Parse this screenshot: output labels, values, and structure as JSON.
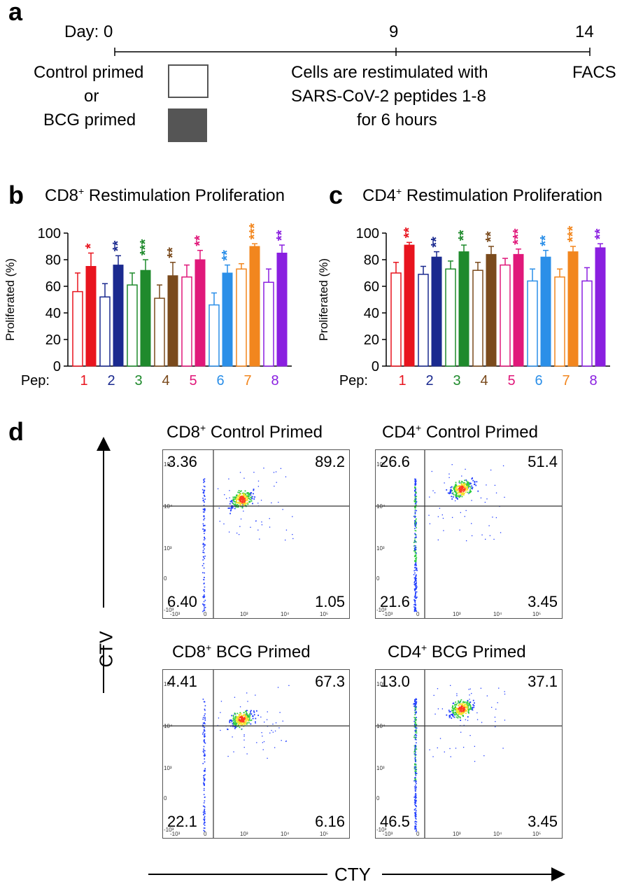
{
  "panel_labels": {
    "a": "a",
    "b": "b",
    "c": "c",
    "d": "d"
  },
  "timeline": {
    "day_label": "Day: 0",
    "mid_day": "9",
    "end_day": "14",
    "control_primed": "Control primed",
    "or": "or",
    "bcg_primed": "BCG primed",
    "restim_line1": "Cells are restimulated with",
    "restim_line2": "SARS-CoV-2 peptides 1-8",
    "restim_line3": "for 6 hours",
    "facs": "FACS"
  },
  "colors": {
    "pep1": "#e8141e",
    "pep2": "#1b2a8f",
    "pep3": "#1f8a2c",
    "pep4": "#7a4a1c",
    "pep5": "#e0187a",
    "pep6": "#2b8fe8",
    "pep7": "#f2861e",
    "pep8": "#8a1fe0",
    "bcg_box": "#555555"
  },
  "chart_data": [
    {
      "type": "bar",
      "title_main": "CD8",
      "title_sup": "+",
      "title_rest": " Restimulation Proliferation",
      "ylabel": "Proliferated  (%)",
      "xlabel": "Pep:",
      "ylim": [
        0,
        100
      ],
      "yticks": [
        "0",
        "20",
        "40",
        "60",
        "80",
        "100"
      ],
      "categories": [
        "1",
        "2",
        "3",
        "4",
        "5",
        "6",
        "7",
        "8"
      ],
      "series": [
        {
          "values": [
            56,
            52,
            61,
            51,
            67,
            46,
            73,
            63
          ],
          "errors": [
            14,
            10,
            9,
            10,
            9,
            9,
            4,
            10
          ]
        },
        {
          "values": [
            75,
            76,
            72,
            68,
            80,
            70,
            90,
            85
          ],
          "errors": [
            10,
            7,
            8,
            10,
            7,
            6,
            2,
            6
          ]
        }
      ],
      "stars": [
        "*",
        "**",
        "***",
        "**",
        "**",
        "**",
        "***",
        "**"
      ]
    },
    {
      "type": "bar",
      "title_main": "CD4",
      "title_sup": "+",
      "title_rest": " Restimulation Proliferation",
      "ylabel": "Proliferated  (%)",
      "xlabel": "Pep:",
      "ylim": [
        0,
        100
      ],
      "yticks": [
        "0",
        "20",
        "40",
        "60",
        "80",
        "100"
      ],
      "categories": [
        "1",
        "2",
        "3",
        "4",
        "5",
        "6",
        "7",
        "8"
      ],
      "series": [
        {
          "values": [
            70,
            69,
            73,
            72,
            76,
            64,
            67,
            64
          ],
          "errors": [
            8,
            6,
            6,
            6,
            5,
            9,
            6,
            10
          ]
        },
        {
          "values": [
            91,
            82,
            86,
            84,
            84,
            82,
            86,
            89
          ],
          "errors": [
            2,
            4,
            5,
            6,
            4,
            5,
            4,
            3
          ]
        }
      ],
      "stars": [
        "**",
        "**",
        "**",
        "**",
        "***",
        "**",
        "***",
        "**"
      ]
    }
  ],
  "facs": {
    "y_axis_label": "CTV",
    "x_axis_label": "CTY",
    "panels": [
      {
        "title_main": "CD8",
        "title_sup": "+",
        "title_rest": " Control Primed",
        "ul": "3.36",
        "ur": "89.2",
        "ll": "6.40",
        "lr": "1.05"
      },
      {
        "title_main": "CD4",
        "title_sup": "+",
        "title_rest": " Control Primed",
        "ul": "26.6",
        "ur": "51.4",
        "ll": "21.6",
        "lr": "3.45"
      },
      {
        "title_main": "CD8",
        "title_sup": "+",
        "title_rest": " BCG Primed",
        "ul": "4.41",
        "ur": "67.3",
        "ll": "22.1",
        "lr": "6.16"
      },
      {
        "title_main": "CD4",
        "title_sup": "+",
        "title_rest": " BCG Primed",
        "ul": "13.0",
        "ur": "37.1",
        "ll": "46.5",
        "lr": "3.45"
      }
    ],
    "y_ticks": [
      "10⁵",
      "10⁴",
      "10³",
      "0",
      "-10³"
    ],
    "x_ticks": [
      "-10³",
      "0",
      "10³",
      "10⁴",
      "10⁵"
    ]
  }
}
